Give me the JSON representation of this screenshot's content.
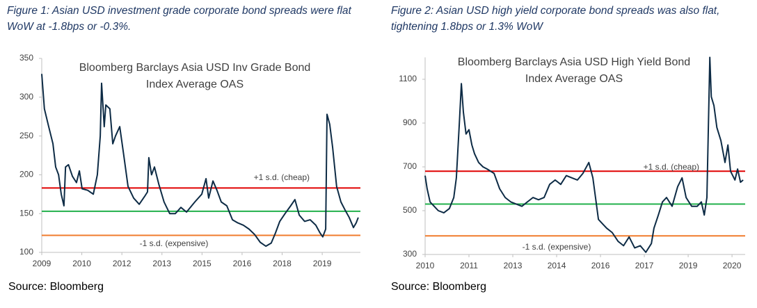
{
  "chart_data": [
    {
      "type": "line",
      "caption": "Figure 1: Asian USD investment grade corporate bond spreads were flat WoW at -1.8bps or -0.3%.",
      "title": [
        "Bloomberg Barclays Asia USD Inv Grade Bond",
        "Index Average OAS"
      ],
      "source": "Source: Bloomberg",
      "x": [
        2009.0,
        2009.1,
        2009.26,
        2009.42,
        2009.52,
        2009.63,
        2009.73,
        2009.83,
        2009.89,
        2010.0,
        2010.15,
        2010.3,
        2010.41,
        2010.51,
        2010.72,
        2010.93,
        2011.08,
        2011.19,
        2011.24,
        2011.34,
        2011.4,
        2011.55,
        2011.66,
        2011.76,
        2011.92,
        2012.07,
        2012.23,
        2012.44,
        2012.65,
        2012.85,
        2012.96,
        2013.01,
        2013.11,
        2013.22,
        2013.38,
        2013.58,
        2013.79,
        2014.0,
        2014.21,
        2014.42,
        2014.73,
        2014.99,
        2015.15,
        2015.25,
        2015.41,
        2015.56,
        2015.72,
        2015.93,
        2016.14,
        2016.34,
        2016.55,
        2016.76,
        2016.97,
        2017.18,
        2017.39,
        2017.59,
        2017.75,
        2017.91,
        2018.11,
        2018.32,
        2018.48,
        2018.64,
        2018.84,
        2019.05,
        2019.26,
        2019.42,
        2019.52,
        2019.63,
        2019.68,
        2019.78,
        2019.89,
        2020.04,
        2020.2,
        2020.35,
        2020.51,
        2020.67,
        2020.77,
        2020.85
      ],
      "series": [
        {
          "color": "#0d2b45",
          "values": [
            330,
            285,
            262,
            240,
            210,
            200,
            175,
            160,
            210,
            213,
            198,
            190,
            205,
            182,
            180,
            175,
            200,
            250,
            318,
            262,
            290,
            285,
            240,
            250,
            262,
            225,
            185,
            170,
            162,
            172,
            178,
            222,
            200,
            210,
            188,
            165,
            150,
            150,
            158,
            152,
            165,
            175,
            195,
            170,
            192,
            180,
            165,
            160,
            142,
            138,
            135,
            130,
            123,
            113,
            108,
            112,
            125,
            140,
            150,
            160,
            168,
            148,
            140,
            142,
            135,
            125,
            120,
            130,
            278,
            265,
            235,
            185,
            165,
            155,
            145,
            132,
            138,
            145
          ]
        }
      ],
      "reference_lines": [
        {
          "value": 183,
          "color": "#e00000",
          "label": "+1 s.d. (cheap)"
        },
        {
          "value": 153,
          "color": "#22b04b"
        },
        {
          "value": 122,
          "color": "#f07b2c",
          "label": "-1 s.d. (expensive)"
        }
      ],
      "xlim": [
        2009,
        2020.93
      ],
      "xticks": [
        2009,
        {
          "value": 2010.5,
          "label": "2010"
        },
        2012,
        {
          "value": 2013.5,
          "label": "2013"
        },
        2015,
        {
          "value": 2016.5,
          "label": "2016"
        },
        2018,
        {
          "value": 2019.5,
          "label": "2019"
        }
      ],
      "ylim": [
        100,
        350
      ],
      "yticks": [
        100,
        150,
        200,
        250,
        300,
        350
      ]
    },
    {
      "type": "line",
      "caption": "Figure 2: Asian USD high yield corporate bond spreads was also flat, tightening 1.8bps or 1.3% WoW",
      "title": [
        "Bloomberg Barclays Asia USD High Yield Bond",
        "Index Average OAS"
      ],
      "source": "Source: Bloomberg",
      "x": [
        2010.0,
        2010.07,
        2010.17,
        2010.31,
        2010.45,
        2010.64,
        2010.83,
        2010.98,
        2011.07,
        2011.17,
        2011.24,
        2011.31,
        2011.4,
        2011.5,
        2011.6,
        2011.69,
        2011.83,
        2011.98,
        2012.12,
        2012.36,
        2012.55,
        2012.74,
        2012.93,
        2013.12,
        2013.31,
        2013.5,
        2013.69,
        2013.88,
        2014.07,
        2014.26,
        2014.45,
        2014.64,
        2014.83,
        2015.02,
        2015.21,
        2015.4,
        2015.6,
        2015.74,
        2015.83,
        2015.93,
        2016.07,
        2016.21,
        2016.4,
        2016.6,
        2016.79,
        2016.98,
        2017.17,
        2017.36,
        2017.55,
        2017.74,
        2017.83,
        2017.98,
        2018.12,
        2018.26,
        2018.45,
        2018.64,
        2018.79,
        2018.93,
        2019.12,
        2019.31,
        2019.45,
        2019.55,
        2019.64,
        2019.74,
        2019.79,
        2019.88,
        2019.98,
        2020.12,
        2020.26,
        2020.36,
        2020.45,
        2020.6,
        2020.69,
        2020.79,
        2020.88
      ],
      "series": [
        {
          "color": "#0d2b45",
          "values": [
            660,
            600,
            540,
            520,
            500,
            490,
            510,
            560,
            650,
            900,
            1080,
            950,
            850,
            870,
            800,
            760,
            720,
            700,
            690,
            670,
            600,
            560,
            540,
            530,
            520,
            540,
            560,
            550,
            560,
            620,
            640,
            620,
            660,
            650,
            640,
            670,
            720,
            650,
            560,
            460,
            440,
            420,
            400,
            360,
            340,
            380,
            330,
            340,
            310,
            350,
            420,
            480,
            540,
            560,
            520,
            610,
            650,
            560,
            520,
            520,
            540,
            480,
            560,
            1200,
            1020,
            980,
            880,
            820,
            720,
            800,
            680,
            640,
            690,
            630,
            640
          ]
        }
      ],
      "reference_lines": [
        {
          "value": 680,
          "color": "#e00000",
          "label": "+1 s.d. (cheap)"
        },
        {
          "value": 530,
          "color": "#22b04b"
        },
        {
          "value": 385,
          "color": "#f07b2c",
          "label": "-1 s.d. (expensive)"
        }
      ],
      "xlim": [
        2010,
        2020.95
      ],
      "xticks": [
        2010,
        {
          "value": 2011.5,
          "label": "2011"
        },
        2013,
        {
          "value": 2014.5,
          "label": "2014"
        },
        2016,
        {
          "value": 2017.5,
          "label": "2017"
        },
        2019,
        {
          "value": 2020.5,
          "label": "2020"
        }
      ],
      "ylim": [
        300,
        1200
      ],
      "yticks": [
        300,
        500,
        700,
        900,
        1100
      ]
    }
  ]
}
